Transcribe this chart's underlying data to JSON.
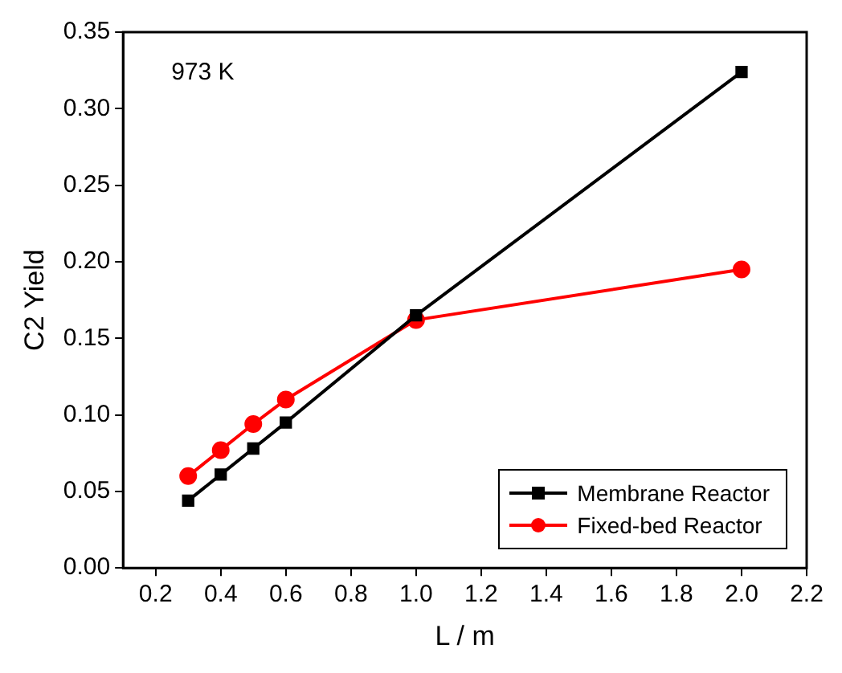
{
  "chart_data": {
    "type": "line",
    "xlabel": "L / m",
    "ylabel": "C2 Yield",
    "x": [
      0.3,
      0.4,
      0.5,
      0.6,
      1.0,
      2.0
    ],
    "series": [
      {
        "name": "Membrane Reactor",
        "color": "#000000",
        "marker": "square",
        "values": [
          0.044,
          0.061,
          0.078,
          0.095,
          0.165,
          0.324
        ]
      },
      {
        "name": "Fixed-bed Reactor",
        "color": "#ff0000",
        "marker": "circle",
        "values": [
          0.06,
          0.077,
          0.094,
          0.11,
          0.162,
          0.195
        ]
      }
    ],
    "xlim": [
      0.1,
      2.2
    ],
    "xticks": [
      0.2,
      0.4,
      0.6,
      0.8,
      {
        "value": 1,
        "label": "1.0"
      },
      1.2,
      1.4,
      1.6,
      1.8,
      {
        "value": 2,
        "label": "2.0"
      },
      2.2
    ],
    "ylim": [
      0,
      0.35
    ],
    "yticks": [
      {
        "value": 0,
        "label": "0.00"
      },
      0.05,
      {
        "value": 0.1,
        "label": "0.10"
      },
      0.15,
      {
        "value": 0.2,
        "label": "0.20"
      },
      0.25,
      {
        "value": 0.3,
        "label": "0.30"
      },
      0.35
    ],
    "annotations": [
      "973 K"
    ],
    "grid": false,
    "legend": "bottom right",
    "line_style": "solid"
  }
}
